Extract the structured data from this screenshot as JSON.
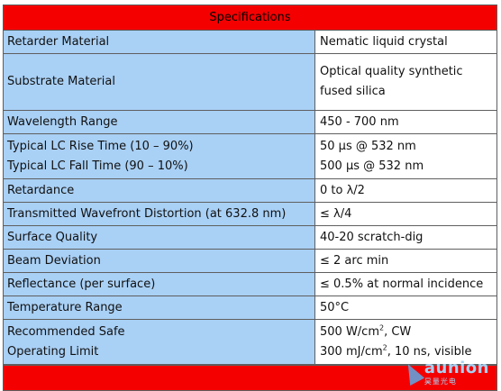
{
  "table": {
    "title": "Specifications",
    "rows": [
      {
        "label": [
          "Retarder Material"
        ],
        "value": [
          "Nematic liquid crystal"
        ]
      },
      {
        "label": [
          "Substrate Material"
        ],
        "value": [
          "Optical quality synthetic",
          "fused silica"
        ]
      },
      {
        "label": [
          "Wavelength Range"
        ],
        "value": [
          "450 - 700 nm"
        ]
      },
      {
        "label": [
          "Typical LC Rise Time (10 – 90%)",
          "Typical LC Fall Time (90 – 10%)"
        ],
        "value": [
          "50 μs @ 532 nm",
          "500 μs @ 532 nm"
        ]
      },
      {
        "label": [
          "Retardance"
        ],
        "value": [
          "0 to λ/2"
        ]
      },
      {
        "label": [
          "Transmitted Wavefront Distortion (at 632.8 nm)"
        ],
        "value": [
          "≤ λ/4"
        ]
      },
      {
        "label": [
          "Surface Quality"
        ],
        "value": [
          "40-20 scratch-dig"
        ]
      },
      {
        "label": [
          "Beam Deviation"
        ],
        "value": [
          "≤ 2 arc min"
        ]
      },
      {
        "label": [
          "Reflectance (per surface)"
        ],
        "value": [
          "≤ 0.5% at normal incidence"
        ]
      },
      {
        "label": [
          "Temperature Range"
        ],
        "value": [
          "50°C"
        ]
      },
      {
        "label": [
          "Recommended Safe",
          "Operating Limit"
        ],
        "value": [
          "500 W/cm",
          "300 mJ/cm"
        ]
      }
    ],
    "limit_value_sup": "2",
    "limit_value_suffix": [
      ", CW",
      ", 10 ns, visible"
    ]
  },
  "watermark": {
    "brand": "aunion",
    "brand_cn": "昊量光电"
  },
  "colors": {
    "header_red": "#f50000",
    "label_blue": "#a9d0f5",
    "border": "#5f5f5f"
  }
}
